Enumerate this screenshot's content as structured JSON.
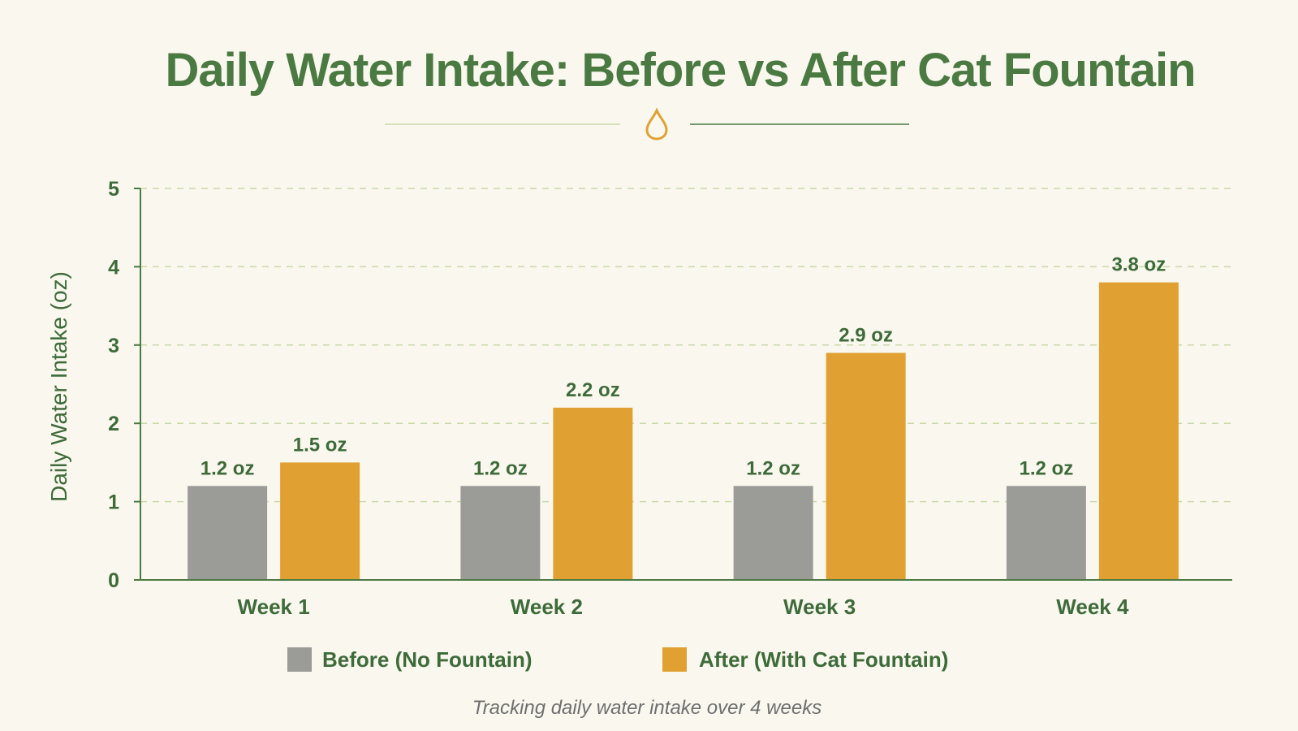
{
  "colors": {
    "background": "#faf7ee",
    "title": "#4a7a42",
    "axis": "#4a7a42",
    "text": "#3e6b3a",
    "grid": "#c9d9a8",
    "before": "#9b9b98",
    "after": "#e0a132",
    "drop_icon": "#e0a132",
    "footnote": "#6f6f6f"
  },
  "icons": {
    "divider": "water-drop-icon"
  },
  "footnote": "Tracking daily water intake over 4 weeks",
  "chart_data": {
    "type": "bar",
    "title": "Daily Water Intake: Before vs After Cat Fountain",
    "xlabel": "",
    "ylabel": "Daily Water Intake (oz)",
    "ylim": [
      0,
      5
    ],
    "yticks": [
      0,
      1,
      2,
      3,
      4,
      5
    ],
    "grid": true,
    "legend_position": "bottom",
    "categories": [
      "Week 1",
      "Week 2",
      "Week 3",
      "Week 4"
    ],
    "series": [
      {
        "name": "Before (No Fountain)",
        "color": "#9b9b98",
        "values": [
          1.2,
          1.2,
          1.2,
          1.2
        ],
        "labels": [
          "1.2 oz",
          "1.2 oz",
          "1.2 oz",
          "1.2 oz"
        ]
      },
      {
        "name": "After (With Cat Fountain)",
        "color": "#e0a132",
        "values": [
          1.5,
          2.2,
          2.9,
          3.8
        ],
        "labels": [
          "1.5 oz",
          "2.2 oz",
          "2.9 oz",
          "3.8 oz"
        ]
      }
    ]
  }
}
